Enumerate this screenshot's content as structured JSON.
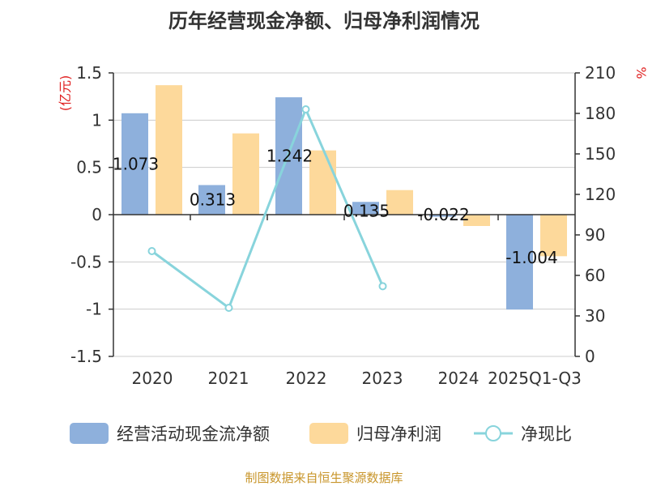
{
  "chart_data": {
    "type": "bar+line",
    "title": "历年经营现金净额、归母净利润情况",
    "categories": [
      "2020",
      "2021",
      "2022",
      "2023",
      "2024",
      "2025Q1-Q3"
    ],
    "series": [
      {
        "name": "经营活动现金流净额",
        "type": "bar",
        "axis": "left",
        "color": "#8eb0dc",
        "values": [
          1.073,
          0.313,
          1.242,
          0.135,
          -0.022,
          -1.004
        ],
        "labels": [
          "1.073",
          "0.313",
          "1.242",
          "0.135",
          "-0.022",
          "-1.004"
        ]
      },
      {
        "name": "归母净利润",
        "type": "bar",
        "axis": "left",
        "color": "#fdd99b",
        "values": [
          1.37,
          0.86,
          0.68,
          0.26,
          -0.12,
          -0.44
        ]
      },
      {
        "name": "净现比",
        "type": "line",
        "axis": "right",
        "color": "#88d4dc",
        "values": [
          78,
          36,
          183,
          52,
          null,
          null
        ]
      }
    ],
    "left_axis": {
      "unit": "(亿元)",
      "ylim": [
        -1.5,
        1.5
      ],
      "ticks": [
        -1.5,
        -1,
        -0.5,
        0,
        0.5,
        1,
        1.5
      ],
      "tick_labels": [
        "-1.5",
        "-1",
        "-0.5",
        "0",
        "0.5",
        "1",
        "1.5"
      ]
    },
    "right_axis": {
      "unit": "%",
      "ylim": [
        0,
        210
      ],
      "ticks": [
        0,
        30,
        60,
        90,
        120,
        150,
        180,
        210
      ],
      "tick_labels": [
        "0",
        "30",
        "60",
        "90",
        "120",
        "150",
        "180",
        "210"
      ]
    },
    "grid": true,
    "legend_position": "bottom"
  },
  "source_note": "制图数据来自恒生聚源数据库"
}
